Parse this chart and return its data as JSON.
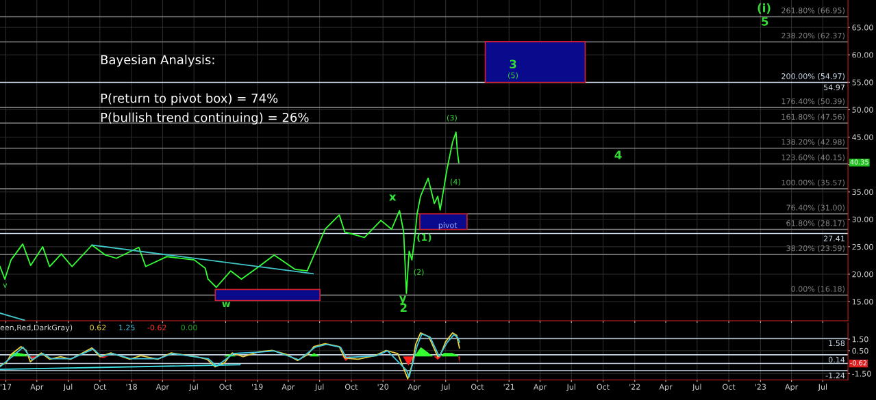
{
  "chart_data": [
    {
      "type": "line",
      "xlim": [
        "2016-12-15",
        "2023-09-12"
      ],
      "ylim": [
        11.5,
        70
      ],
      "yticks": [
        {
          "value": 15,
          "label": "15.00"
        },
        {
          "value": 20,
          "label": "20.00"
        },
        {
          "value": 25,
          "label": "25.00"
        },
        {
          "value": 30,
          "label": "30.00"
        },
        {
          "value": 35,
          "label": "35.00"
        },
        {
          "value": 40,
          "label": null
        },
        {
          "value": 45,
          "label": "45.00"
        },
        {
          "value": 50,
          "label": "50.00"
        },
        {
          "value": 55,
          "label": "55.00"
        },
        {
          "value": 60,
          "label": "60.00"
        },
        {
          "value": 65,
          "label": "65.00"
        }
      ],
      "xticks": [
        {
          "value": "2017-01-01",
          "label": null
        },
        {
          "value": "2017-04-01",
          "label": null
        },
        {
          "value": "2017-07-01",
          "label": null
        },
        {
          "value": "2017-10-01",
          "label": null
        },
        {
          "value": "2018-01-01",
          "label": null
        },
        {
          "value": "2018-04-01",
          "label": null
        },
        {
          "value": "2018-07-01",
          "label": null
        },
        {
          "value": "2018-10-01",
          "label": null
        },
        {
          "value": "2019-01-01",
          "label": null
        },
        {
          "value": "2019-04-01",
          "label": null
        },
        {
          "value": "2019-07-01",
          "label": null
        },
        {
          "value": "2019-10-01",
          "label": null
        },
        {
          "value": "2020-01-01",
          "label": null
        },
        {
          "value": "2020-04-01",
          "label": null
        },
        {
          "value": "2020-07-01",
          "label": null
        },
        {
          "value": "2020-10-01",
          "label": null
        },
        {
          "value": "2021-01-01",
          "label": null
        },
        {
          "value": "2021-04-01",
          "label": null
        },
        {
          "value": "2021-07-01",
          "label": null
        },
        {
          "value": "2021-10-01",
          "label": null
        },
        {
          "value": "2022-01-01",
          "label": null
        },
        {
          "value": "2022-04-01",
          "label": null
        },
        {
          "value": "2022-07-01",
          "label": null
        },
        {
          "value": "2022-10-01",
          "label": null
        },
        {
          "value": "2023-01-01",
          "label": null
        },
        {
          "value": "2023-04-01",
          "label": null
        },
        {
          "value": "2023-07-01",
          "label": null
        }
      ],
      "tick_labels": "y",
      "grid": true,
      "line_style": "solid",
      "series": [
        {
          "type": "line",
          "color": "#33ff33",
          "x": [
            "2016-12-15",
            "2016-12-29",
            "2017-01-16",
            "2017-02-19",
            "2017-03-14",
            "2017-04-18",
            "2017-05-08",
            "2017-06-11",
            "2017-07-12",
            "2017-09-08",
            "2017-10-17",
            "2017-11-18",
            "2018-01-22",
            "2018-02-11",
            "2018-04-13",
            "2018-07-02",
            "2018-08-03",
            "2018-08-11",
            "2018-09-04",
            "2018-10-16",
            "2018-11-16",
            "2019-01-06",
            "2019-02-19",
            "2019-04-20",
            "2019-05-26",
            "2019-06-23",
            "2019-07-17",
            "2019-08-27",
            "2019-09-12",
            "2019-11-08",
            "2019-12-26",
            "2020-01-26",
            "2020-02-18",
            "2020-03-01",
            "2020-03-09",
            "2020-03-17",
            "2020-03-25",
            "2020-04-03",
            "2020-04-09",
            "2020-04-19",
            "2020-05-11",
            "2020-05-29",
            "2020-06-08",
            "2020-06-15",
            "2020-07-05",
            "2020-07-21",
            "2020-07-31",
            "2020-08-04",
            "2020-08-08"
          ],
          "values": [
            21.4,
            19.1,
            22.6,
            25.5,
            21.6,
            25.0,
            21.4,
            23.7,
            21.4,
            25.3,
            23.5,
            22.9,
            24.9,
            21.4,
            23.2,
            22.6,
            21.1,
            19.1,
            17.6,
            20.6,
            19.1,
            21.4,
            23.5,
            20.9,
            20.6,
            24.7,
            28.2,
            30.8,
            27.7,
            26.7,
            29.8,
            28.2,
            31.6,
            27.7,
            16.5,
            24.2,
            22.6,
            27.2,
            31.0,
            34.2,
            37.5,
            32.9,
            34.2,
            31.7,
            39.2,
            44.1,
            45.9,
            42.3,
            40.35
          ]
        },
        {
          "type": "line",
          "color": "#40c8c8",
          "x": [
            "2017-09-08",
            "2019-06-12"
          ],
          "values": [
            25.3,
            20.1
          ]
        },
        {
          "type": "line",
          "color": "#40c8c8",
          "x": [
            "2016-12-15",
            "2017-02-24"
          ],
          "values": [
            12.9,
            11.6
          ]
        },
        {
          "type": "area",
          "color": "#0a0a8c",
          "x": [
            "2018-09-01",
            "2018-09-01",
            "2019-07-02",
            "2019-07-02",
            "2018-09-01"
          ],
          "values": [
            15.2,
            17.2,
            17.2,
            15.2,
            15.2
          ]
        },
        {
          "type": "area",
          "color": "#0a0a8c",
          "x": [
            "2020-04-17",
            "2020-04-17",
            "2020-09-01",
            "2020-09-01",
            "2020-04-17"
          ],
          "values": [
            28.17,
            31.0,
            31.0,
            28.17,
            28.17
          ]
        },
        {
          "type": "area",
          "color": "#0a0a8c",
          "x": [
            "2020-10-24",
            "2020-10-24",
            "2021-08-10",
            "2021-08-10",
            "2020-10-24"
          ],
          "values": [
            54.97,
            62.4,
            62.4,
            54.97,
            54.97
          ]
        }
      ],
      "ref_lines": [
        {
          "axis": "y",
          "value": 66.95,
          "label": "261.80% (66.95)",
          "color": "#808080"
        },
        {
          "axis": "y",
          "value": 62.37,
          "label": "238.20% (62.37)",
          "color": "#808080"
        },
        {
          "axis": "y",
          "value": 54.97,
          "label": "200.00% (54.97)",
          "color": "#c8d8e8"
        },
        {
          "axis": "y",
          "value": 50.39,
          "label": "176.40% (50.39)",
          "color": "#808080"
        },
        {
          "axis": "y",
          "value": 47.56,
          "label": "161.80% (47.56)",
          "color": "#808080"
        },
        {
          "axis": "y",
          "value": 42.98,
          "label": "138.20% (42.98)",
          "color": "#808080"
        },
        {
          "axis": "y",
          "value": 40.15,
          "label": "123.60% (40.15)",
          "color": "#808080"
        },
        {
          "axis": "y",
          "value": 35.57,
          "label": "100.00% (35.57)",
          "color": "#808080"
        },
        {
          "axis": "y",
          "value": 31.0,
          "label": "76.40% (31.00)",
          "color": "#808080"
        },
        {
          "axis": "y",
          "value": 28.17,
          "label": "61.80% (28.17)",
          "color": "#808080"
        },
        {
          "axis": "y",
          "value": 23.59,
          "label": "38.20% (23.59)",
          "color": "#808080"
        },
        {
          "axis": "y",
          "value": 16.18,
          "label": "0.00% (16.18)",
          "color": "#808080"
        },
        {
          "axis": "y",
          "value": 27.41,
          "label": "27.41",
          "color": "#c8d8e8"
        }
      ],
      "annotations": [
        "Bayesian Analysis:",
        "P(return to pivot box) = 74%",
        "P(bullish trend continuing) = 26%",
        "v",
        "x",
        "y",
        "2",
        "(2)",
        "(3)",
        "(4)",
        "pivot",
        "3",
        "(5)",
        "4",
        "(i)",
        "5",
        {
          "text": "w",
          "x": "2018-08-25",
          "y": 15.5
        },
        {
          "text": "(1)",
          "x": "2020-03-22",
          "y": 27.6
        },
        {
          "text": "54.97",
          "y": 54.97
        },
        {
          "text": "40.35",
          "y": 40.35
        }
      ]
    },
    {
      "type": "line",
      "xlim": [
        "2016-12-15",
        "2023-09-12"
      ],
      "ylim": [
        -2.06,
        2.93
      ],
      "yticks": [
        {
          "value": 1.5,
          "label": "1.50"
        },
        {
          "value": 0.5,
          "label": "0.50"
        },
        {
          "value": -1.5,
          "label": "-1.50"
        }
      ],
      "xticks": [
        {
          "value": "2017-01-01",
          "label": "'17"
        },
        {
          "value": "2017-04-01",
          "label": "Apr"
        },
        {
          "value": "2017-07-01",
          "label": "Jul"
        },
        {
          "value": "2017-10-01",
          "label": "Oct"
        },
        {
          "value": "2018-01-01",
          "label": "'18"
        },
        {
          "value": "2018-04-01",
          "label": "Apr"
        },
        {
          "value": "2018-07-01",
          "label": "Jul"
        },
        {
          "value": "2018-10-01",
          "label": "Oct"
        },
        {
          "value": "2019-01-01",
          "label": "'19"
        },
        {
          "value": "2019-04-01",
          "label": "Apr"
        },
        {
          "value": "2019-07-01",
          "label": "Jul"
        },
        {
          "value": "2019-10-01",
          "label": "Oct"
        },
        {
          "value": "2020-01-01",
          "label": "'20"
        },
        {
          "value": "2020-04-01",
          "label": "Apr"
        },
        {
          "value": "2020-07-01",
          "label": "Jul"
        },
        {
          "value": "2020-10-01",
          "label": "Oct"
        },
        {
          "value": "2021-01-01",
          "label": "'21"
        },
        {
          "value": "2021-04-01",
          "label": "Apr"
        },
        {
          "value": "2021-07-01",
          "label": "Jul"
        },
        {
          "value": "2021-10-01",
          "label": "Oct"
        },
        {
          "value": "2022-01-01",
          "label": "'22"
        },
        {
          "value": "2022-04-01",
          "label": "Apr"
        },
        {
          "value": "2022-07-01",
          "label": "Jul"
        },
        {
          "value": "2022-10-01",
          "label": "Oct"
        },
        {
          "value": "2023-01-01",
          "label": "'23"
        },
        {
          "value": "2023-04-01",
          "label": "Apr"
        },
        {
          "value": "2023-07-01",
          "label": "Jul"
        }
      ],
      "grid": true,
      "line_style": "solid",
      "series": [
        {
          "type": "area",
          "color": "#33ff33",
          "x": [
            "2017-01-10",
            "2017-01-25",
            "2017-02-25",
            "2017-03-05",
            "2017-03-06",
            "2018-09-25",
            "2018-10-15",
            "2018-11-01",
            "2018-11-02",
            "2019-06-01",
            "2019-06-15",
            "2019-07-01",
            "2019-07-02",
            "2020-04-01",
            "2020-04-20",
            "2020-05-10",
            "2020-05-25",
            "2020-05-26",
            "2020-06-18",
            "2020-06-25",
            "2020-07-20",
            "2020-08-05",
            "2020-08-07"
          ],
          "values": [
            0,
            0.35,
            0.2,
            0,
            null,
            0,
            0.2,
            0,
            null,
            0,
            0.3,
            0,
            null,
            0,
            0.8,
            0.35,
            0,
            null,
            0,
            0.3,
            0.3,
            0.1,
            0
          ]
        },
        {
          "type": "area",
          "color": "#ff2020",
          "x": [
            "2017-03-05",
            "2017-03-20",
            "2017-04-05",
            "2017-04-06",
            "2017-09-25",
            "2017-10-10",
            "2017-10-25",
            "2017-10-26",
            "2019-09-05",
            "2019-09-15",
            "2019-09-30",
            "2019-10-01",
            "2020-02-28",
            "2020-03-15",
            "2020-03-31",
            "2020-04-01",
            "2020-05-28",
            "2020-06-08",
            "2020-06-18",
            "2020-06-19",
            "2020-08-07",
            "2020-08-09",
            "2020-08-11"
          ],
          "values": [
            0,
            -0.35,
            0,
            null,
            0,
            -0.15,
            0,
            null,
            0,
            -0.4,
            0,
            null,
            0,
            -0.8,
            0,
            null,
            0,
            -0.3,
            0,
            null,
            0,
            -0.62,
            0
          ]
        },
        {
          "type": "line",
          "color": "#e8d040",
          "x": [
            "2016-12-15",
            "2017-01-01",
            "2017-01-17",
            "2017-02-14",
            "2017-03-01",
            "2017-03-13",
            "2017-04-14",
            "2017-05-08",
            "2017-06-09",
            "2017-07-08",
            "2017-08-05",
            "2017-09-08",
            "2017-10-01",
            "2017-11-02",
            "2017-12-27",
            "2018-01-28",
            "2018-03-18",
            "2018-04-26",
            "2018-07-07",
            "2018-08-08",
            "2018-09-01",
            "2018-09-27",
            "2018-10-20",
            "2018-11-21",
            "2019-01-06",
            "2019-02-14",
            "2019-03-26",
            "2019-04-28",
            "2019-05-29",
            "2019-06-14",
            "2019-07-17",
            "2019-08-27",
            "2019-09-12",
            "2019-10-21",
            "2019-12-08",
            "2020-01-10",
            "2020-02-13",
            "2020-03-05",
            "2020-03-13",
            "2020-03-25",
            "2020-04-05",
            "2020-04-19",
            "2020-05-13",
            "2020-06-08",
            "2020-06-15",
            "2020-07-01",
            "2020-07-21",
            "2020-08-02",
            "2020-08-10"
          ],
          "values": [
            -0.8,
            -0.58,
            0.19,
            0.85,
            0.52,
            -0.47,
            0.3,
            -0.25,
            -0.03,
            -0.25,
            0.19,
            0.74,
            -0.03,
            0.3,
            -0.25,
            0.06,
            -0.25,
            0.3,
            -0.03,
            -0.25,
            -0.91,
            -0.58,
            0.3,
            -0.03,
            0.41,
            0.52,
            0.19,
            -0.36,
            0.19,
            0.85,
            1.11,
            0.85,
            -0.14,
            -0.25,
            0.06,
            0.52,
            0.24,
            -1.35,
            -1.96,
            -0.8,
            1.07,
            2.05,
            1.72,
            -0.03,
            0.08,
            1.29,
            2.05,
            1.83,
            0.74
          ]
        },
        {
          "type": "line",
          "color": "#40c8e0",
          "x": [
            "2016-12-15",
            "2017-01-20",
            "2017-02-20",
            "2017-03-18",
            "2017-04-18",
            "2017-05-12",
            "2017-07-10",
            "2017-09-12",
            "2017-10-05",
            "2017-11-06",
            "2017-12-30",
            "2018-03-20",
            "2018-04-30",
            "2018-08-12",
            "2018-09-05",
            "2018-10-24",
            "2019-01-10",
            "2019-02-18",
            "2019-05-02",
            "2019-06-18",
            "2019-07-21",
            "2019-08-31",
            "2019-09-16",
            "2019-12-12",
            "2020-01-14",
            "2020-03-09",
            "2020-03-17",
            "2020-04-09",
            "2020-04-23",
            "2020-05-17",
            "2020-06-12",
            "2020-07-05",
            "2020-07-25",
            "2020-08-06",
            "2020-08-10"
          ],
          "values": [
            -0.9,
            0.0,
            0.8,
            -0.3,
            0.25,
            -0.2,
            -0.2,
            0.65,
            0.0,
            0.25,
            -0.2,
            -0.2,
            0.25,
            -0.2,
            -0.85,
            0.25,
            0.38,
            0.48,
            -0.3,
            0.8,
            1.05,
            0.8,
            -0.1,
            0.05,
            0.48,
            -1.2,
            -1.8,
            0.9,
            1.95,
            1.68,
            0.0,
            1.2,
            1.9,
            1.6,
            1.25
          ]
        },
        {
          "type": "line",
          "color": "#40e0e8",
          "x": [
            "2016-12-15",
            "2018-11-12"
          ],
          "values": [
            -1.13,
            -0.73
          ]
        }
      ],
      "ref_lines": [
        {
          "axis": "y",
          "value": 1.58,
          "label": "1.58",
          "color": "#c8d8e8"
        },
        {
          "axis": "y",
          "value": 0.14,
          "label": "0.14",
          "color": "#c8d8e8"
        },
        {
          "axis": "y",
          "value": -0.62,
          "label": null,
          "color": "#c8d8e8"
        },
        {
          "axis": "y",
          "value": -1.24,
          "label": "-1.24",
          "color": "#c8d8e8"
        }
      ],
      "annotations": [
        "een,Red,DarkGray)",
        "0.62",
        "1.25",
        "-0.62",
        "0.00",
        {
          "text": "-0.62",
          "y": -0.62
        }
      ]
    }
  ]
}
